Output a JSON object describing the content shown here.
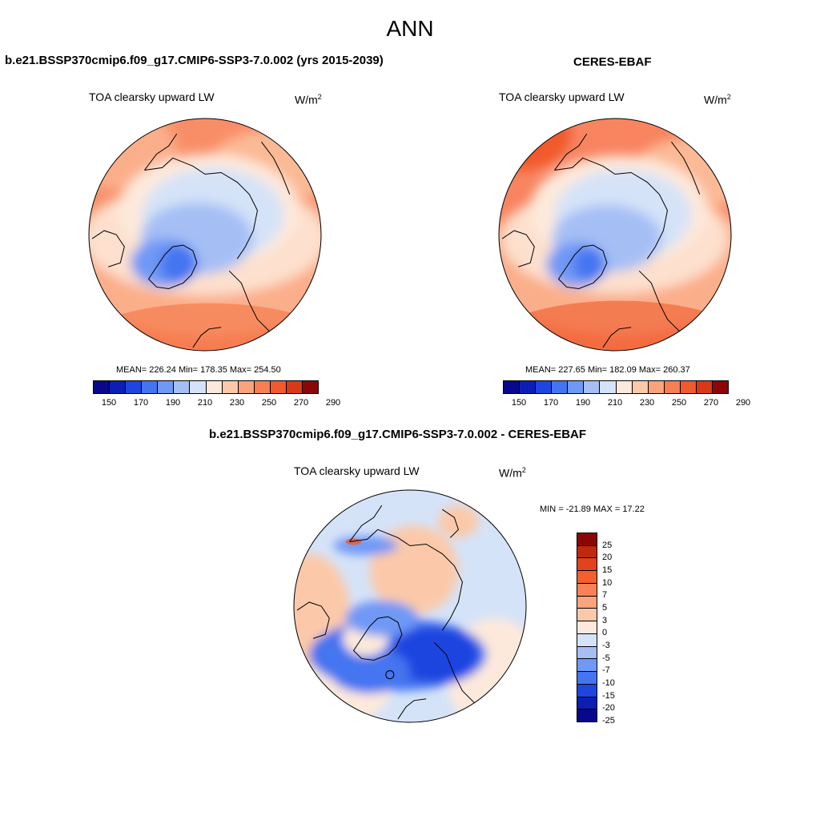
{
  "figure": {
    "title": "ANN"
  },
  "panels": [
    {
      "title": "b.e21.BSSP370cmip6.f09_g17.CMIP6-SSP3-7.0.002 (yrs 2015-2039)",
      "variable": "TOA clearsky upward LW",
      "units_base": "W/m",
      "units_exp": "2",
      "stats": "MEAN= 226.24  Min= 178.35  Max= 254.50"
    },
    {
      "title": "CERES-EBAF",
      "variable": "TOA clearsky upward LW",
      "units_base": "W/m",
      "units_exp": "2",
      "stats": "MEAN= 227.65  Min= 182.09  Max= 260.37"
    },
    {
      "title": "b.e21.BSSP370cmip6.f09_g17.CMIP6-SSP3-7.0.002 - CERES-EBAF",
      "variable": "TOA clearsky upward LW",
      "units_base": "W/m",
      "units_exp": "2",
      "stats": "MIN = -21.89 MAX =  17.22"
    }
  ],
  "colorbar_abs": {
    "colors": [
      "#08088a",
      "#0c1fb5",
      "#1f45e0",
      "#4574f0",
      "#7098f5",
      "#a5bff5",
      "#d5e3f8",
      "#fde9db",
      "#fbc9a9",
      "#fba37c",
      "#f87e54",
      "#f05a2c",
      "#d83a17",
      "#8b0606"
    ],
    "tick_labels": [
      "150",
      "170",
      "190",
      "210",
      "230",
      "250",
      "270",
      "290"
    ]
  },
  "colorbar_diff": {
    "colors": [
      "#8b0606",
      "#c0290c",
      "#e2421c",
      "#f4602c",
      "#f88157",
      "#fba37c",
      "#fbc9a9",
      "#fde9db",
      "#d5e3f8",
      "#a5bff5",
      "#7098f5",
      "#4574f0",
      "#1f45e0",
      "#0c1fb5",
      "#08088a"
    ],
    "tick_labels": [
      "25",
      "20",
      "15",
      "10",
      "7",
      "5",
      "3",
      "0",
      "-3",
      "-5",
      "-7",
      "-10",
      "-15",
      "-20",
      "-25"
    ]
  },
  "chart_data": [
    {
      "type": "heatmap",
      "title": "b.e21.BSSP370cmip6.f09_g17.CMIP6-SSP3-7.0.002 (yrs 2015-2039)",
      "variable": "TOA clearsky upward LW",
      "units": "W/m2",
      "mean": 226.24,
      "min": 178.35,
      "max": 254.5,
      "contour_levels": [
        150,
        160,
        170,
        180,
        190,
        200,
        210,
        220,
        230,
        240,
        250,
        260,
        270,
        280,
        290
      ]
    },
    {
      "type": "heatmap",
      "title": "CERES-EBAF",
      "variable": "TOA clearsky upward LW",
      "units": "W/m2",
      "mean": 227.65,
      "min": 182.09,
      "max": 260.37,
      "contour_levels": [
        150,
        160,
        170,
        180,
        190,
        200,
        210,
        220,
        230,
        240,
        250,
        260,
        270,
        280,
        290
      ]
    },
    {
      "type": "heatmap",
      "title": "b.e21.BSSP370cmip6.f09_g17.CMIP6-SSP3-7.0.002 - CERES-EBAF",
      "variable": "TOA clearsky upward LW",
      "units": "W/m2",
      "min": -21.89,
      "max": 17.22,
      "contour_levels": [
        -25,
        -20,
        -15,
        -10,
        -7,
        -5,
        -3,
        0,
        3,
        5,
        7,
        10,
        15,
        20,
        25
      ]
    }
  ]
}
